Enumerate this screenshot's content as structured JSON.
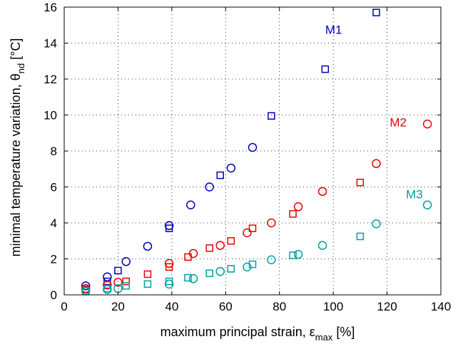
{
  "chart_data": {
    "type": "scatter",
    "xlabel": {
      "main": "maximum principal strain, ε",
      "sub": "max",
      "unit": " [%]"
    },
    "ylabel": {
      "main": "minimal temperature variation, θ",
      "sub": "nd",
      "unit": " [°C]"
    },
    "xlim": [
      0,
      140
    ],
    "ylim": [
      0,
      16
    ],
    "xticks": [
      0,
      20,
      40,
      60,
      80,
      100,
      120,
      140
    ],
    "yticks": [
      0,
      2,
      4,
      6,
      8,
      10,
      12,
      14,
      16
    ],
    "grid": true,
    "series": [
      {
        "name": "M1",
        "color": "#0000bf",
        "marker": "circle",
        "points": [
          [
            8,
            0.5
          ],
          [
            16,
            1.0
          ],
          [
            23,
            1.85
          ],
          [
            31,
            2.7
          ],
          [
            39,
            3.85
          ],
          [
            47,
            5.0
          ],
          [
            54,
            6.0
          ],
          [
            62,
            7.05
          ],
          [
            70,
            8.2
          ]
        ]
      },
      {
        "name": "M1",
        "color": "#0000bf",
        "marker": "square",
        "points": [
          [
            8,
            0.3
          ],
          [
            16,
            0.75
          ],
          [
            20,
            1.35
          ],
          [
            39,
            3.7
          ],
          [
            58,
            6.65
          ],
          [
            77,
            9.95
          ],
          [
            97,
            12.55
          ],
          [
            116,
            15.7
          ]
        ]
      },
      {
        "name": "M2",
        "color": "#e60000",
        "marker": "circle",
        "points": [
          [
            8,
            0.35
          ],
          [
            16,
            0.55
          ],
          [
            20,
            0.7
          ],
          [
            39,
            1.75
          ],
          [
            48,
            2.3
          ],
          [
            58,
            2.75
          ],
          [
            68,
            3.45
          ],
          [
            77,
            4.0
          ],
          [
            87,
            4.9
          ],
          [
            96,
            5.75
          ],
          [
            116,
            7.3
          ],
          [
            135,
            9.5
          ]
        ]
      },
      {
        "name": "M2",
        "color": "#e60000",
        "marker": "square",
        "points": [
          [
            8,
            0.3
          ],
          [
            16,
            0.55
          ],
          [
            23,
            0.75
          ],
          [
            31,
            1.15
          ],
          [
            39,
            1.55
          ],
          [
            46,
            2.1
          ],
          [
            54,
            2.6
          ],
          [
            62,
            3.0
          ],
          [
            70,
            3.7
          ],
          [
            85,
            4.5
          ],
          [
            110,
            6.25
          ]
        ]
      },
      {
        "name": "M3",
        "color": "#00a0a0",
        "marker": "circle",
        "points": [
          [
            8,
            0.22
          ],
          [
            16,
            0.3
          ],
          [
            20,
            0.35
          ],
          [
            39,
            0.6
          ],
          [
            48,
            0.9
          ],
          [
            58,
            1.3
          ],
          [
            68,
            1.55
          ],
          [
            77,
            1.95
          ],
          [
            87,
            2.25
          ],
          [
            96,
            2.75
          ],
          [
            116,
            3.95
          ],
          [
            135,
            5.0
          ]
        ]
      },
      {
        "name": "M3",
        "color": "#00a0a0",
        "marker": "square",
        "points": [
          [
            8,
            0.2
          ],
          [
            16,
            0.35
          ],
          [
            23,
            0.5
          ],
          [
            31,
            0.6
          ],
          [
            39,
            0.75
          ],
          [
            46,
            0.95
          ],
          [
            54,
            1.2
          ],
          [
            62,
            1.45
          ],
          [
            70,
            1.7
          ],
          [
            85,
            2.2
          ],
          [
            110,
            3.25
          ]
        ]
      }
    ],
    "annotations": [
      {
        "text": "M1",
        "x": 97,
        "y": 14.75,
        "color": "#0000bf"
      },
      {
        "text": "M2",
        "x": 121,
        "y": 9.6,
        "color": "#e60000"
      },
      {
        "text": "M3",
        "x": 127,
        "y": 5.6,
        "color": "#00a0a0"
      }
    ]
  }
}
